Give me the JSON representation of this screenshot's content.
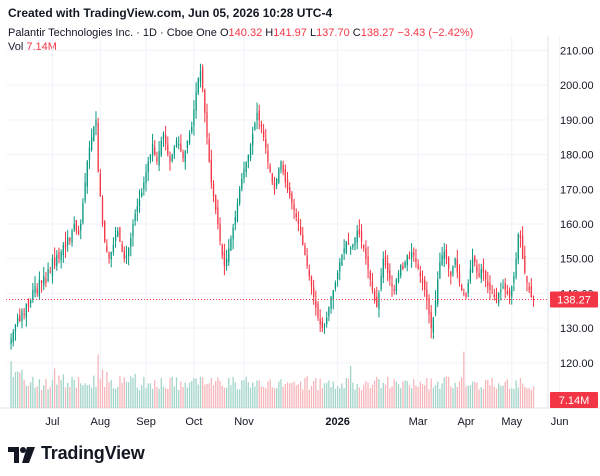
{
  "header": {
    "created_text": "Created with TradingView.com, Jun 05, 2026 10:28 UTC-4"
  },
  "legend": {
    "symbol": "Palantir Technologies Inc. · 1D · Cboe One",
    "o_label": "O",
    "o_value": "140.32",
    "h_label": "H",
    "h_value": "141.97",
    "l_label": "L",
    "l_value": "137.70",
    "c_label": "C",
    "c_value": "138.27",
    "change": "−3.43 (−2.42%)"
  },
  "vol_legend": {
    "label": "Vol",
    "value": "7.14M"
  },
  "footer": {
    "brand": "TradingView"
  },
  "colors": {
    "up": "#089981",
    "down": "#f23645",
    "up_vol": "#a3d5c9",
    "down_vol": "#f7b6bb",
    "grid": "#f0f3fa",
    "axis_text": "#131722"
  },
  "chart_data": {
    "type": "candlestick",
    "title": "Palantir Technologies Inc. · 1D · Cboe One",
    "ylim": [
      107,
      213
    ],
    "y_ticks": [
      120,
      130,
      140,
      150,
      160,
      170,
      180,
      190,
      200,
      210
    ],
    "x_ticks": [
      "Jul",
      "Aug",
      "Sep",
      "Oct",
      "Nov",
      "2026",
      "Mar",
      "Apr",
      "May",
      "Jun"
    ],
    "x_tick_index": [
      19,
      41,
      62,
      84,
      107,
      150,
      187,
      209,
      230,
      252
    ],
    "last_price": "138.27",
    "last_volume": "7.14M",
    "close": [
      127,
      129,
      131,
      133,
      132,
      135,
      134,
      137,
      136,
      138,
      141,
      142,
      140,
      144,
      143,
      145,
      143,
      147,
      146,
      150,
      148,
      151,
      150,
      152,
      154,
      153,
      156,
      155,
      158,
      160,
      158,
      157,
      160,
      166,
      172,
      178,
      182,
      185,
      188,
      190,
      175,
      168,
      160,
      155,
      152,
      150,
      152,
      154,
      157,
      158,
      155,
      152,
      150,
      151,
      153,
      156,
      160,
      163,
      165,
      167,
      169,
      172,
      175,
      178,
      180,
      183,
      180,
      178,
      181,
      184,
      186,
      183,
      180,
      178,
      180,
      182,
      184,
      183,
      181,
      179,
      181,
      184,
      186,
      188,
      193,
      198,
      202,
      204,
      199,
      192,
      185,
      178,
      172,
      168,
      164,
      160,
      155,
      151,
      148,
      150,
      153,
      156,
      159,
      162,
      166,
      170,
      173,
      176,
      178,
      180,
      183,
      186,
      189,
      192,
      190,
      188,
      185,
      182,
      178,
      175,
      172,
      170,
      173,
      176,
      178,
      175,
      172,
      170,
      168,
      166,
      164,
      162,
      160,
      157,
      154,
      151,
      148,
      145,
      142,
      139,
      136,
      133,
      131,
      130,
      131,
      133,
      136,
      139,
      141,
      143,
      146,
      149,
      151,
      153,
      155,
      154,
      153,
      154,
      156,
      158,
      157,
      155,
      153,
      150,
      147,
      144,
      141,
      138,
      136,
      140,
      145,
      150,
      148,
      146,
      144,
      142,
      141,
      144,
      146,
      148,
      147,
      149,
      151,
      150,
      152,
      151,
      149,
      147,
      145,
      143,
      141,
      138,
      134,
      130,
      133,
      138,
      144,
      149,
      151,
      152,
      150,
      147,
      145,
      148,
      150,
      146,
      143,
      141,
      140,
      139,
      143,
      147,
      150,
      149,
      146,
      145,
      147,
      146,
      144,
      142,
      141,
      140,
      139,
      138,
      140,
      141,
      142,
      141,
      140,
      139,
      142,
      145,
      150,
      157,
      156,
      150,
      146,
      143,
      141,
      139,
      138
    ],
    "volume_fraction": [
      0.78,
      0.52,
      0.6,
      0.61,
      0.59,
      0.64,
      0.47,
      0.37,
      0.37,
      0.43,
      0.52,
      0.34,
      0.36,
      0.48,
      0.3,
      0.38,
      0.48,
      0.31,
      0.35,
      0.46,
      0.66,
      0.39,
      0.54,
      0.46,
      0.56,
      0.34,
      0.42,
      0.35,
      0.52,
      0.47,
      0.34,
      0.52,
      0.41,
      0.38,
      0.41,
      0.38,
      0.39,
      0.34,
      0.54,
      0.35,
      0.89,
      0.48,
      0.64,
      0.35,
      0.6,
      0.43,
      0.47,
      0.33,
      0.32,
      0.35,
      0.53,
      0.42,
      0.51,
      0.44,
      0.43,
      0.53,
      0.5,
      0.57,
      0.34,
      0.3,
      0.38,
      0.52,
      0.33,
      0.41,
      0.41,
      0.32,
      0.46,
      0.35,
      0.32,
      0.5,
      0.36,
      0.33,
      0.32,
      0.5,
      0.52,
      0.36,
      0.51,
      0.3,
      0.44,
      0.35,
      0.42,
      0.34,
      0.42,
      0.45,
      0.5,
      0.49,
      0.39,
      0.52,
      0.51,
      0.39,
      0.4,
      0.41,
      0.5,
      0.38,
      0.45,
      0.51,
      0.45,
      0.37,
      0.34,
      0.34,
      0.5,
      0.38,
      0.52,
      0.43,
      0.31,
      0.31,
      0.46,
      0.46,
      0.52,
      0.43,
      0.34,
      0.43,
      0.36,
      0.46,
      0.46,
      0.36,
      0.35,
      0.33,
      0.44,
      0.48,
      0.35,
      0.33,
      0.33,
      0.44,
      0.48,
      0.35,
      0.4,
      0.43,
      0.41,
      0.42,
      0.44,
      0.38,
      0.4,
      0.44,
      0.31,
      0.5,
      0.53,
      0.3,
      0.37,
      0.45,
      0.5,
      0.3,
      0.49,
      0.33,
      0.41,
      0.42,
      0.46,
      0.35,
      0.44,
      0.32,
      0.36,
      0.33,
      0.41,
      0.33,
      0.5,
      0.49,
      0.7,
      0.42,
      0.31,
      0.4,
      0.34,
      0.3,
      0.39,
      0.45,
      0.42,
      0.33,
      0.39,
      0.46,
      0.52,
      0.48,
      0.33,
      0.42,
      0.39,
      0.52,
      0.33,
      0.36,
      0.48,
      0.44,
      0.4,
      0.33,
      0.44,
      0.46,
      0.45,
      0.38,
      0.33,
      0.48,
      0.37,
      0.35,
      0.44,
      0.4,
      0.38,
      0.5,
      0.31,
      0.49,
      0.34,
      0.38,
      0.44,
      0.32,
      0.41,
      0.51,
      0.53,
      0.52,
      0.36,
      0.33,
      0.42,
      0.35,
      0.44,
      0.51,
      0.94,
      0.36,
      0.37,
      0.38,
      0.44,
      0.44,
      0.42,
      0.31,
      0.35,
      0.32,
      0.47,
      0.47,
      0.38,
      0.5,
      0.36,
      0.32,
      0.41,
      0.37,
      0.37,
      0.44,
      0.48,
      0.32,
      0.33,
      0.32,
      0.46,
      0.34,
      0.5,
      0.41,
      0.35,
      0.33,
      0.33,
      0.3,
      0.36,
      0.3,
      0.52,
      0.53,
      0.75,
      0.52,
      0.43,
      0.4,
      0.34,
      0.41
    ]
  }
}
